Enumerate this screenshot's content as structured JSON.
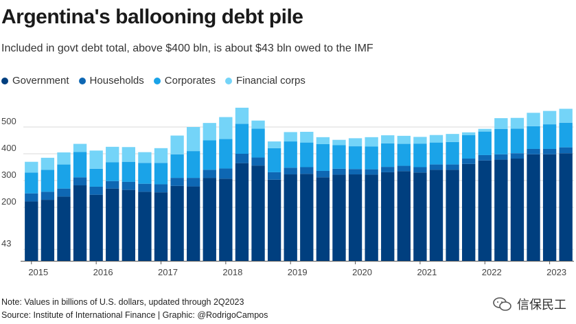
{
  "header": {
    "title": "Argentina's ballooning debt pile",
    "subtitle": "Included in govt debt total, above $400 bln, is about $43 bln owed to the IMF"
  },
  "footer": {
    "note": "Note: Values in billions of U.S. dollars, updated through 2Q2023",
    "source": "Source: Institute of International Finance | Graphic: @RodrigoCampos"
  },
  "watermark": {
    "text": "信保民工",
    "icon": "wechat-icon"
  },
  "colors": {
    "Government": "#003f7f",
    "Households": "#0e67b3",
    "Corporates": "#1aa3e8",
    "Financial corps": "#74d4f8"
  },
  "chart_data": {
    "type": "bar",
    "stacked": true,
    "frequency": "quarterly",
    "x": [
      "1Q2015",
      "2Q2015",
      "3Q2015",
      "4Q2015",
      "1Q2016",
      "2Q2016",
      "3Q2016",
      "4Q2016",
      "1Q2017",
      "2Q2017",
      "3Q2017",
      "4Q2017",
      "1Q2018",
      "2Q2018",
      "3Q2018",
      "4Q2018",
      "1Q2019",
      "2Q2019",
      "3Q2019",
      "4Q2019",
      "1Q2020",
      "2Q2020",
      "3Q2020",
      "4Q2020",
      "1Q2021",
      "2Q2021",
      "3Q2021",
      "4Q2021",
      "1Q2022",
      "2Q2022",
      "3Q2022",
      "4Q2022",
      "1Q2023",
      "2Q2023"
    ],
    "xtick_labels": [
      "2015",
      "2016",
      "2017",
      "2018",
      "2019",
      "2020",
      "2021",
      "2022",
      "2023"
    ],
    "yticks": [
      43,
      200,
      300,
      400,
      500
    ],
    "ylim": [
      0,
      600
    ],
    "series": [
      {
        "name": "Government",
        "values": [
          222,
          228,
          240,
          282,
          247,
          270,
          265,
          258,
          256,
          280,
          278,
          310,
          307,
          365,
          356,
          303,
          323,
          325,
          312,
          322,
          323,
          322,
          331,
          335,
          330,
          340,
          340,
          362,
          375,
          378,
          382,
          398,
          398,
          402
        ]
      },
      {
        "name": "Households",
        "values": [
          30,
          30,
          30,
          30,
          30,
          28,
          30,
          30,
          30,
          30,
          32,
          30,
          38,
          35,
          30,
          28,
          25,
          25,
          24,
          22,
          20,
          20,
          20,
          20,
          20,
          20,
          20,
          20,
          20,
          20,
          20,
          20,
          20,
          22
        ]
      },
      {
        "name": "Corporates",
        "values": [
          78,
          82,
          90,
          95,
          67,
          70,
          75,
          78,
          80,
          88,
          100,
          110,
          110,
          112,
          108,
          90,
          98,
          92,
          100,
          88,
          85,
          85,
          88,
          82,
          88,
          82,
          84,
          88,
          88,
          95,
          92,
          85,
          92,
          92
        ]
      },
      {
        "name": "Financial corps",
        "values": [
          40,
          45,
          45,
          30,
          68,
          58,
          55,
          40,
          55,
          70,
          90,
          65,
          82,
          60,
          30,
          25,
          35,
          40,
          26,
          20,
          30,
          35,
          30,
          30,
          25,
          28,
          30,
          10,
          10,
          40,
          40,
          50,
          50,
          52
        ]
      }
    ],
    "legend_position": "top-left",
    "grid": true
  }
}
